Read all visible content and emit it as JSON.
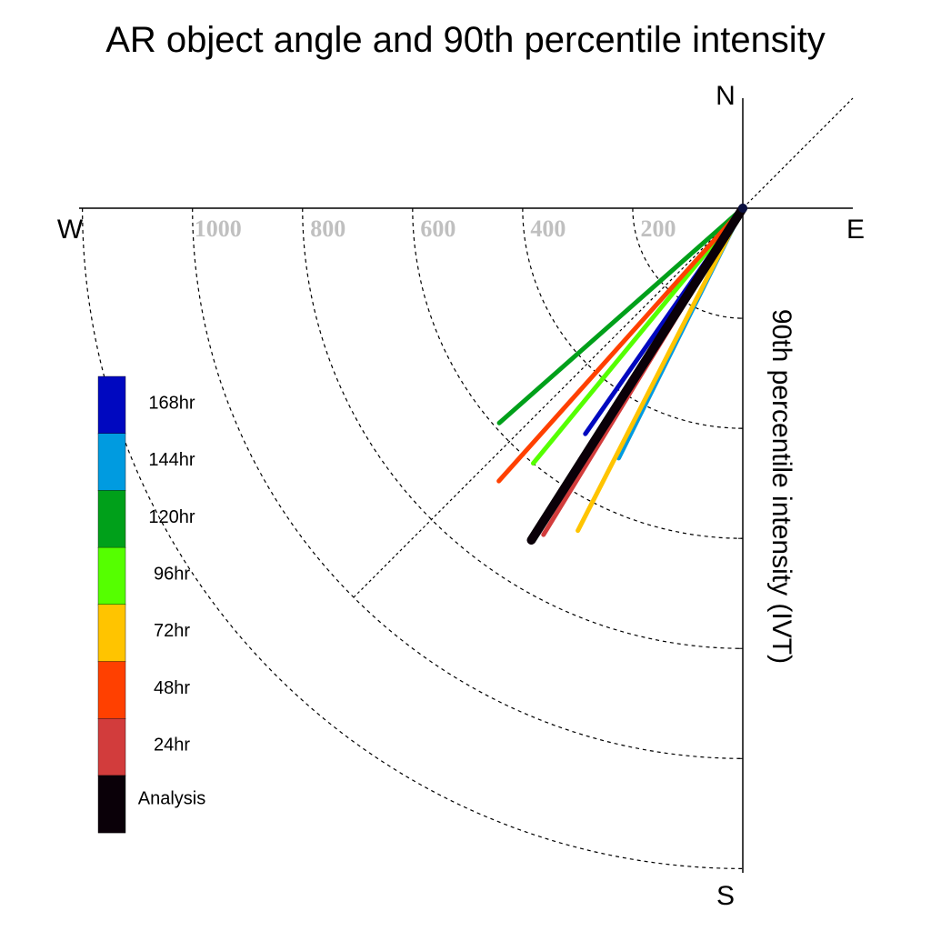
{
  "chart_data": {
    "type": "polar-vector",
    "title": "AR object angle and 90th percentile intensity",
    "ylabel": "90th percentile intensity (IVT)",
    "compass": {
      "north": "N",
      "south": "S",
      "east": "E",
      "west": "W"
    },
    "radial_ticks": [
      200,
      400,
      600,
      800,
      1000
    ],
    "radial_max": 1200,
    "colors": {
      "168hr": "#0008c0",
      "144hr": "#009be0",
      "120hr": "#00a01a",
      "96hr": "#55ff00",
      "72hr": "#ffc400",
      "48hr": "#ff4000",
      "24hr": "#d23c3c",
      "Analysis": "#0a0008"
    },
    "legend": [
      "168hr",
      "144hr",
      "120hr",
      "96hr",
      "72hr",
      "48hr",
      "24hr",
      "Analysis"
    ],
    "series": [
      {
        "name": "120hr",
        "angle_deg": 228.6,
        "intensity": 590,
        "width": 5
      },
      {
        "name": "168hr",
        "angle_deg": 214.9,
        "intensity": 500,
        "width": 5
      },
      {
        "name": "144hr",
        "angle_deg": 206.4,
        "intensity": 507,
        "width": 5
      },
      {
        "name": "72hr",
        "angle_deg": 207.1,
        "intensity": 658,
        "width": 5
      },
      {
        "name": "96hr",
        "angle_deg": 219.4,
        "intensity": 600,
        "width": 5
      },
      {
        "name": "24hr",
        "angle_deg": 211.4,
        "intensity": 695,
        "width": 5
      },
      {
        "name": "48hr",
        "angle_deg": 221.8,
        "intensity": 665,
        "width": 5
      },
      {
        "name": "Analysis",
        "angle_deg": 212.5,
        "intensity": 715,
        "width": 10
      }
    ]
  }
}
